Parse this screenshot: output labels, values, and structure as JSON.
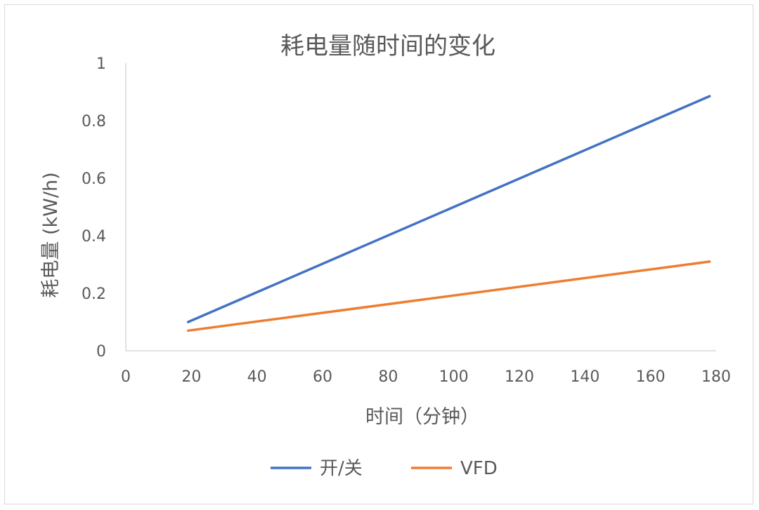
{
  "chart_data": {
    "type": "line",
    "title": "耗电量随时间的变化",
    "xlabel": "时间（分钟）",
    "ylabel": "耗电量 (kW/h)",
    "xlim": [
      0,
      180
    ],
    "ylim": [
      0,
      1
    ],
    "x_ticks": [
      "0",
      "20",
      "40",
      "60",
      "80",
      "100",
      "120",
      "140",
      "160",
      "180"
    ],
    "y_ticks": [
      "0",
      "0.2",
      "0.4",
      "0.6",
      "0.8",
      "1"
    ],
    "grid": false,
    "legend_position": "bottom",
    "series": [
      {
        "name": "开/关",
        "color": "#4472C4",
        "x": [
          19,
          178
        ],
        "y": [
          0.1,
          0.885
        ]
      },
      {
        "name": "VFD",
        "color": "#ED7D31",
        "x": [
          19,
          178
        ],
        "y": [
          0.07,
          0.31
        ]
      }
    ]
  }
}
